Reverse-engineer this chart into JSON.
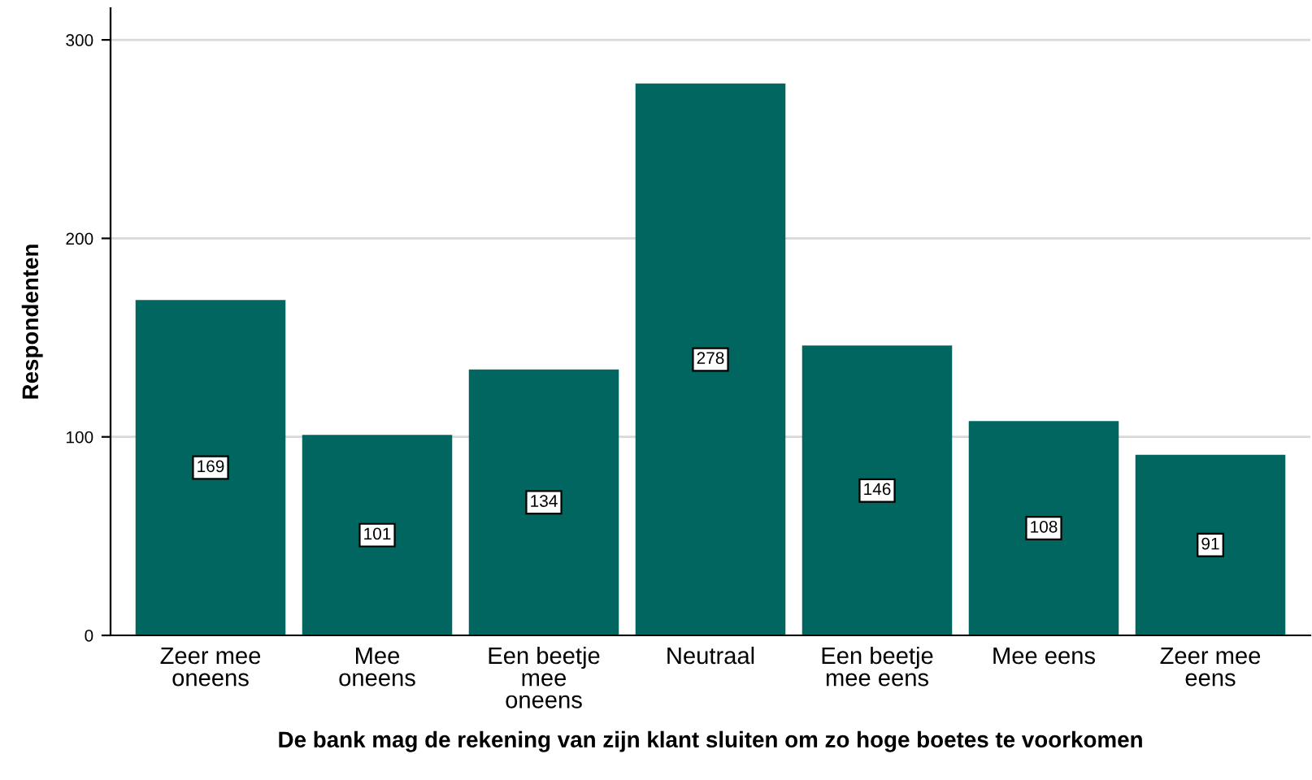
{
  "chart_data": {
    "type": "bar",
    "xlabel": "De bank mag de rekening van zijn klant sluiten om zo hoge boetes te voorkomen",
    "ylabel": "Respondenten",
    "categories": [
      "Zeer mee\noneens",
      "Mee\noneens",
      "Een beetje\nmee\noneens",
      "Neutraal",
      "Een beetje\nmee eens",
      "Mee eens",
      "Zeer mee\neens"
    ],
    "values": [
      169,
      101,
      134,
      278,
      146,
      108,
      91
    ],
    "color": "#00665f",
    "ylim": [
      0,
      316
    ],
    "yticks": [
      0,
      100,
      200,
      300
    ],
    "grid": "y",
    "data_labels": true,
    "legend": false
  }
}
